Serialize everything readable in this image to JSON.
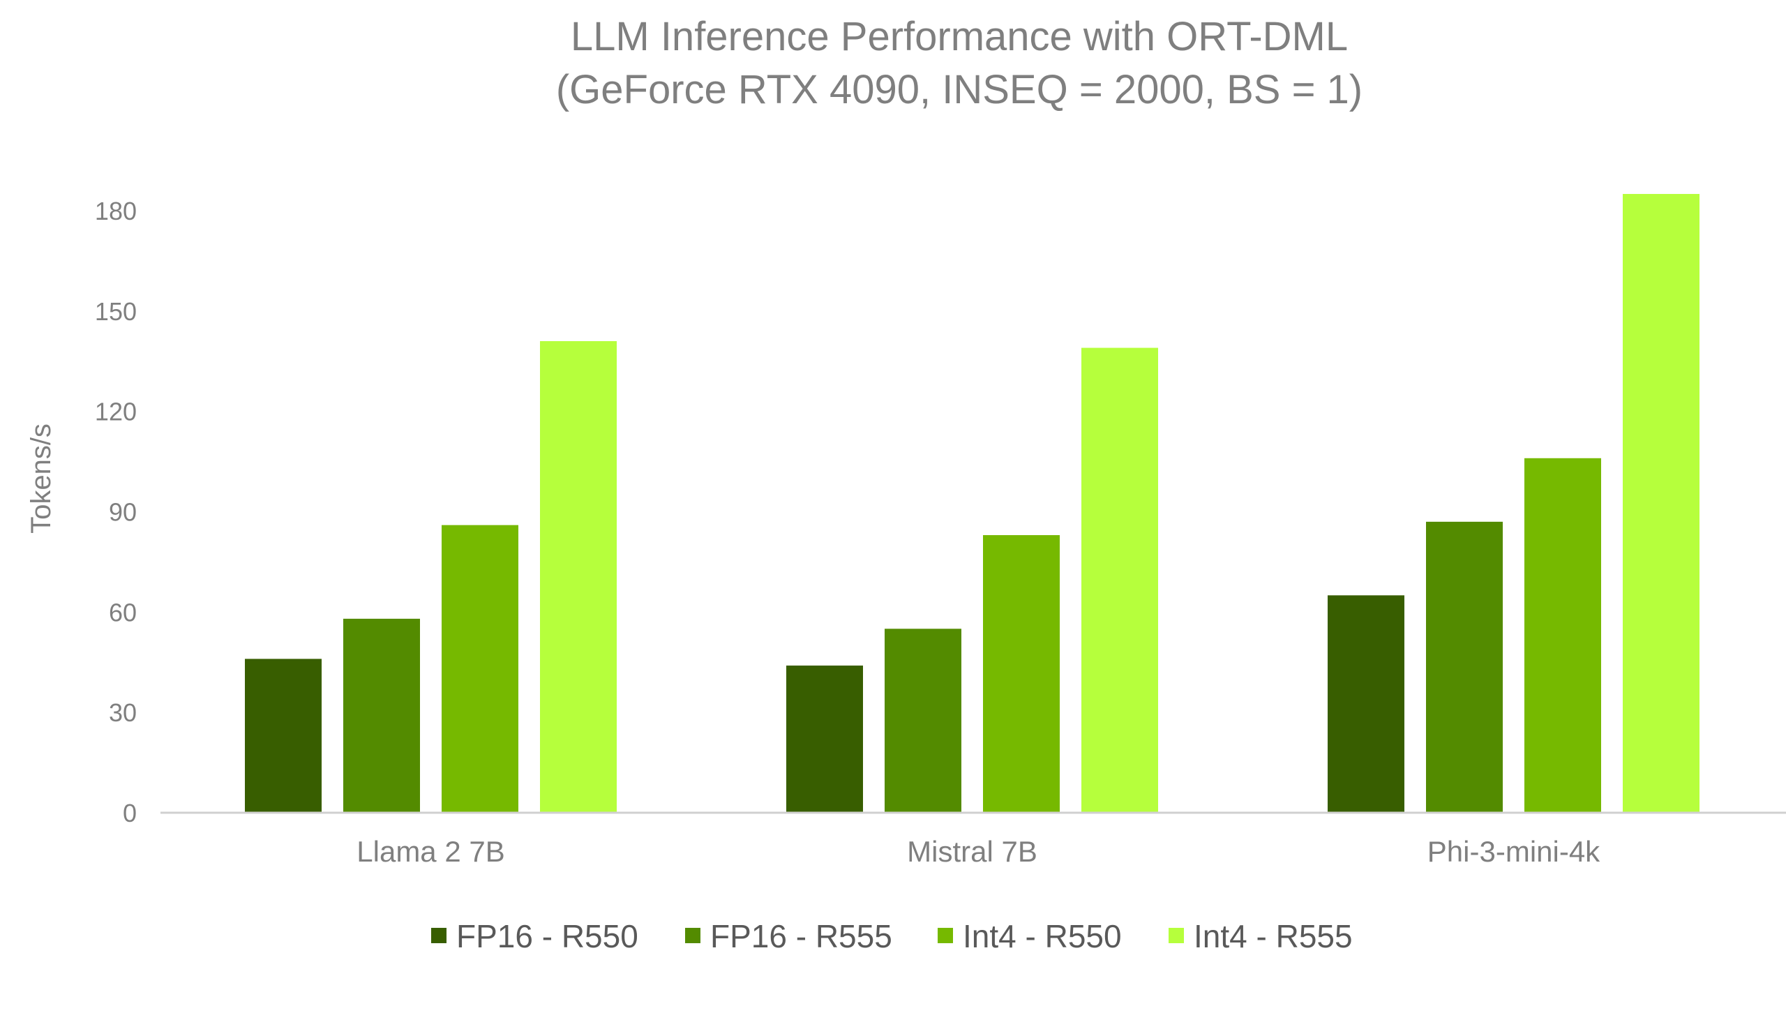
{
  "chart_data": {
    "type": "bar",
    "title": "LLM Inference Performance with ORT-DML",
    "subtitle": "(GeForce RTX 4090, INSEQ = 2000, BS = 1)",
    "xlabel": "",
    "ylabel": "Tokens/s",
    "ylim": [
      0,
      180
    ],
    "yticks": [
      0,
      30,
      60,
      90,
      120,
      150,
      180
    ],
    "grid": false,
    "legend_position": "bottom",
    "categories": [
      "Llama 2 7B",
      "Mistral 7B",
      "Phi-3-mini-4k"
    ],
    "series": [
      {
        "name": "FP16 - R550",
        "color": "#385e00",
        "values": [
          46,
          44,
          65
        ]
      },
      {
        "name": "FP16 - R555",
        "color": "#538b00",
        "values": [
          58,
          55,
          87
        ]
      },
      {
        "name": "Int4 - R550",
        "color": "#76b900",
        "values": [
          86,
          83,
          106
        ]
      },
      {
        "name": "Int4 - R555",
        "color": "#b6ff3c",
        "values": [
          141,
          139,
          185
        ]
      }
    ],
    "axis_color": "#d0d0d0"
  }
}
